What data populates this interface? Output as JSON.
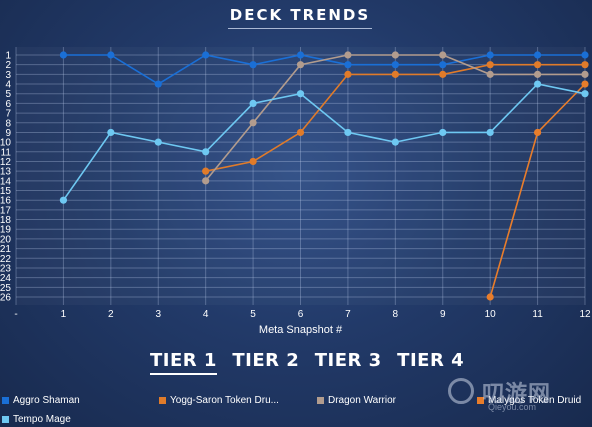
{
  "title": "DECK TRENDS",
  "tiers": [
    {
      "label": "TIER 1",
      "active": true
    },
    {
      "label": "TIER 2",
      "active": false
    },
    {
      "label": "TIER 3",
      "active": false
    },
    {
      "label": "TIER 4",
      "active": false
    }
  ],
  "watermark": {
    "logo_text": "叨游网",
    "sub_text": "Qieyou.com"
  },
  "chart_data": {
    "type": "line",
    "title": "DECK TRENDS",
    "xlabel": "Meta Snapshot #",
    "ylabel": "",
    "x_tick_labels": [
      "-",
      "1",
      "2",
      "3",
      "4",
      "5",
      "6",
      "7",
      "8",
      "9",
      "10",
      "11",
      "12"
    ],
    "xlim": [
      0,
      12
    ],
    "ylim": [
      1,
      26
    ],
    "y_inverted": true,
    "y_ticks": [
      1,
      2,
      3,
      4,
      5,
      6,
      7,
      8,
      9,
      10,
      11,
      12,
      13,
      14,
      15,
      16,
      17,
      18,
      19,
      20,
      21,
      22,
      23,
      24,
      25,
      26
    ],
    "grid": true,
    "legend_position": "bottom",
    "series": [
      {
        "name": "Aggro Shaman",
        "color": "#1a6fd6",
        "x": [
          1,
          2,
          3,
          4,
          5,
          6,
          7,
          8,
          9,
          10,
          11,
          12
        ],
        "y": [
          1,
          1,
          4,
          1,
          2,
          1,
          2,
          2,
          2,
          1,
          1,
          1
        ]
      },
      {
        "name": "Yogg-Saron Token Dru...",
        "color": "#e07b2a",
        "x": [
          4,
          5,
          6,
          7,
          8,
          9,
          10,
          11,
          12
        ],
        "y": [
          13,
          12,
          9,
          3,
          3,
          3,
          2,
          2,
          2
        ]
      },
      {
        "name": "Dragon Warrior",
        "color": "#b29c8e",
        "x": [
          4,
          5,
          6,
          7,
          8,
          9,
          10,
          11,
          12
        ],
        "y": [
          14,
          8,
          2,
          1,
          1,
          1,
          3,
          3,
          3
        ]
      },
      {
        "name": "Malygos Token Druid",
        "color": "#e87d2b",
        "x": [
          10,
          11,
          12
        ],
        "y": [
          26,
          9,
          4
        ]
      },
      {
        "name": "Tempo Mage",
        "color": "#6ec8f2",
        "x": [
          1,
          2,
          3,
          4,
          5,
          6,
          7,
          8,
          9,
          10,
          11,
          12
        ],
        "y": [
          16,
          9,
          10,
          11,
          6,
          5,
          9,
          10,
          9,
          9,
          4,
          5
        ]
      }
    ]
  }
}
